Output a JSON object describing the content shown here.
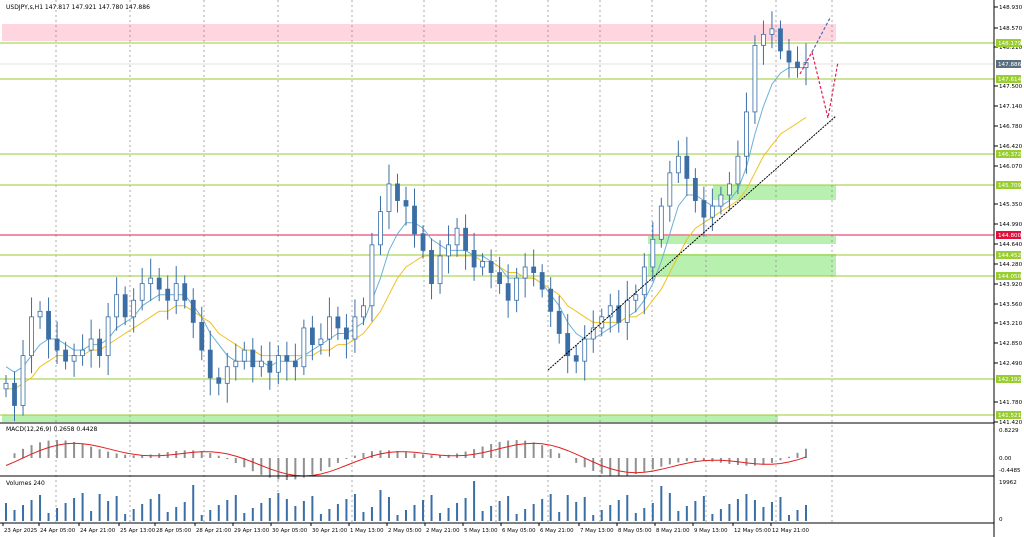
{
  "window": {
    "symbol_header": "USDJPY,s,H1  147.817 147.921 147.780 147.886"
  },
  "indicators": {
    "macd_label": "MACD(12,26,9) 0.2658 0.4428",
    "volume_label": "Volumes 240"
  },
  "price_axis": {
    "ticks": [
      "148.930",
      "148.570",
      "148.210",
      "147.500",
      "147.140",
      "146.780",
      "146.420",
      "146.070",
      "145.350",
      "144.990",
      "144.640",
      "144.280",
      "143.920",
      "143.560",
      "143.210",
      "142.850",
      "142.490",
      "141.780",
      "141.420"
    ],
    "macd_ticks": [
      "0.8229",
      "0.00",
      "-0.4485"
    ],
    "volume_ticks": [
      "19962",
      "0"
    ]
  },
  "level_badges": [
    {
      "value": "148.179",
      "color": "#9acd32"
    },
    {
      "value": "147.886",
      "color": "#5a6e82"
    },
    {
      "value": "147.614",
      "color": "#9acd32"
    },
    {
      "value": "146.372",
      "color": "#9acd32"
    },
    {
      "value": "145.709",
      "color": "#9acd32"
    },
    {
      "value": "144.800",
      "color": "#e0103c"
    },
    {
      "value": "144.452",
      "color": "#9acd32"
    },
    {
      "value": "144.050",
      "color": "#9acd32"
    },
    {
      "value": "142.192",
      "color": "#9acd32"
    },
    {
      "value": "141.521",
      "color": "#9acd32"
    }
  ],
  "time_axis": {
    "labels": [
      "23 Apr 2025",
      "24 Apr 05:00",
      "24 Apr 21:00",
      "25 Apr 13:00",
      "28 Apr 05:00",
      "28 Apr 21:00",
      "29 Apr 13:00",
      "30 Apr 05:00",
      "30 Apr 21:00",
      "1 May 13:00",
      "2 May 05:00",
      "2 May 21:00",
      "5 May 13:00",
      "6 May 05:00",
      "6 May 21:00",
      "7 May 13:00",
      "8 May 05:00",
      "8 May 21:00",
      "9 May 13:00",
      "12 May 05:00",
      "12 May 21:00"
    ]
  },
  "colors": {
    "candle": "#3a6ea5",
    "level_line": "#9acd32",
    "zone_pink": "#ffd6e0",
    "zone_green": "#b8f0b0",
    "ma_fast": "#6ab0d8",
    "ma_slow": "#f0c020",
    "macd_signal": "#e02020",
    "trend": "#000000",
    "projection_up": "#4a6fa5",
    "projection_down": "#e02050"
  },
  "chart_data": {
    "type": "candlestick",
    "series": [
      {
        "values": [
          142.1,
          141.7,
          142.6,
          143.3,
          143.4,
          142.9,
          142.7,
          142.5,
          142.6,
          142.7,
          142.9,
          142.6,
          143.3,
          143.7,
          143.3,
          143.6,
          143.9,
          144.0,
          143.8,
          143.6,
          143.9,
          143.6,
          143.2,
          142.7,
          142.2,
          142.1,
          142.4,
          142.5,
          142.7,
          142.4,
          142.5,
          142.3,
          142.6,
          142.5,
          142.4,
          143.1,
          142.8,
          142.9,
          143.3,
          143.1,
          142.9,
          143.3,
          143.5,
          144.6,
          145.2,
          145.7,
          145.4,
          145.3,
          144.8,
          144.5,
          143.9,
          144.4,
          144.6,
          144.9,
          144.5,
          144.2,
          144.3,
          144.1,
          143.9,
          143.6,
          144.0,
          144.2,
          144.1,
          143.8,
          143.4,
          143.0,
          142.6,
          142.5,
          142.9,
          143.1,
          143.3,
          143.5,
          143.2,
          143.6,
          143.7,
          144.2,
          144.7,
          145.3,
          145.9,
          146.2,
          145.8,
          145.4,
          145.1,
          145.3,
          145.5,
          145.7,
          146.2,
          147.0,
          148.2,
          148.4,
          148.5,
          148.1,
          147.9,
          147.8,
          147.89
        ]
      },
      {
        "name": "MA fast",
        "values": [
          142.4,
          142.3,
          142.4,
          142.6,
          142.8,
          142.9,
          142.9,
          142.8,
          142.7,
          142.7,
          142.8,
          142.8,
          142.9,
          143.1,
          143.2,
          143.3,
          143.5,
          143.6,
          143.7,
          143.7,
          143.7,
          143.7,
          143.5,
          143.3,
          143.0,
          142.8,
          142.6,
          142.5,
          142.5,
          142.5,
          142.5,
          142.4,
          142.5,
          142.5,
          142.5,
          142.6,
          142.7,
          142.8,
          142.9,
          143.0,
          143.0,
          143.1,
          143.2,
          143.6,
          144.0,
          144.5,
          144.8,
          145.0,
          145.0,
          144.9,
          144.7,
          144.6,
          144.5,
          144.5,
          144.5,
          144.4,
          144.4,
          144.3,
          144.2,
          144.0,
          144.0,
          144.0,
          144.0,
          143.9,
          143.7,
          143.5,
          143.2,
          143.0,
          142.9,
          142.9,
          143.0,
          143.1,
          143.2,
          143.3,
          143.4,
          143.6,
          143.9,
          144.3,
          144.8,
          145.3,
          145.5,
          145.5,
          145.4,
          145.3,
          145.3,
          145.4,
          145.6,
          146.0,
          146.6,
          147.1,
          147.5,
          147.7,
          147.8,
          147.8,
          147.8
        ]
      },
      {
        "name": "MA slow",
        "values": [
          142.0,
          142.0,
          142.1,
          142.2,
          142.4,
          142.5,
          142.6,
          142.6,
          142.6,
          142.6,
          142.7,
          142.7,
          142.8,
          142.9,
          143.0,
          143.1,
          143.2,
          143.3,
          143.4,
          143.4,
          143.5,
          143.5,
          143.4,
          143.3,
          143.2,
          143.0,
          142.9,
          142.8,
          142.7,
          142.7,
          142.6,
          142.6,
          142.6,
          142.6,
          142.6,
          142.6,
          142.6,
          142.7,
          142.7,
          142.8,
          142.8,
          142.9,
          143.0,
          143.2,
          143.4,
          143.7,
          144.0,
          144.2,
          144.3,
          144.4,
          144.4,
          144.4,
          144.4,
          144.4,
          144.4,
          144.4,
          144.3,
          144.3,
          144.2,
          144.1,
          144.1,
          144.0,
          144.0,
          143.9,
          143.8,
          143.7,
          143.5,
          143.4,
          143.3,
          143.2,
          143.2,
          143.2,
          143.2,
          143.3,
          143.3,
          143.4,
          143.6,
          143.8,
          144.1,
          144.4,
          144.7,
          144.9,
          145.0,
          145.1,
          145.2,
          145.3,
          145.4,
          145.6,
          145.9,
          146.2,
          146.4,
          146.6,
          146.7,
          146.8,
          146.9
        ]
      }
    ],
    "ylim": [
      141.42,
      148.93
    ]
  }
}
